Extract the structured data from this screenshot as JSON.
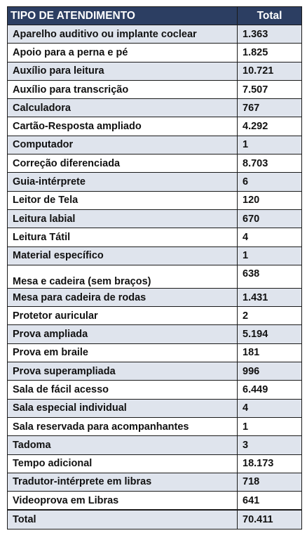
{
  "table": {
    "headers": {
      "tipo": "TIPO DE ATENDIMENTO",
      "total": "Total"
    },
    "rows": [
      {
        "tipo": "Aparelho auditivo ou implante coclear",
        "total": "1.363"
      },
      {
        "tipo": "Apoio para a perna e pé",
        "total": "1.825"
      },
      {
        "tipo": "Auxílio para leitura",
        "total": "10.721"
      },
      {
        "tipo": "Auxílio para transcrição",
        "total": "7.507"
      },
      {
        "tipo": "Calculadora",
        "total": "767"
      },
      {
        "tipo": "Cartão-Resposta ampliado",
        "total": "4.292"
      },
      {
        "tipo": "Computador",
        "total": "1"
      },
      {
        "tipo": "Correção diferenciada",
        "total": "8.703"
      },
      {
        "tipo": "Guia-intérprete",
        "total": "6"
      },
      {
        "tipo": "Leitor de Tela",
        "total": "120"
      },
      {
        "tipo": "Leitura labial",
        "total": "670"
      },
      {
        "tipo": "Leitura Tátil",
        "total": "4"
      },
      {
        "tipo": "Material específico",
        "total": "1"
      },
      {
        "tipo": "Mesa e cadeira (sem braços)",
        "total": "638"
      },
      {
        "tipo": "Mesa para cadeira de rodas",
        "total": "1.431"
      },
      {
        "tipo": "Protetor auricular",
        "total": "2"
      },
      {
        "tipo": "Prova ampliada",
        "total": "5.194"
      },
      {
        "tipo": "Prova em braile",
        "total": "181"
      },
      {
        "tipo": "Prova superampliada",
        "total": "996"
      },
      {
        "tipo": "Sala de fácil acesso",
        "total": "6.449"
      },
      {
        "tipo": "Sala especial individual",
        "total": "4"
      },
      {
        "tipo": "Sala reservada para acompanhantes",
        "total": "1"
      },
      {
        "tipo": "Tadoma",
        "total": "3"
      },
      {
        "tipo": "Tempo adicional",
        "total": "18.173"
      },
      {
        "tipo": "Tradutor-intérprete em libras",
        "total": "718"
      },
      {
        "tipo": "Videoprova em Libras",
        "total": "641"
      }
    ],
    "footer": {
      "tipo": "Total",
      "total": "70.411"
    }
  },
  "colors": {
    "header_bg": "#2c3e62",
    "band_bg": "#dfe4ed",
    "border": "#1a1a1a"
  }
}
